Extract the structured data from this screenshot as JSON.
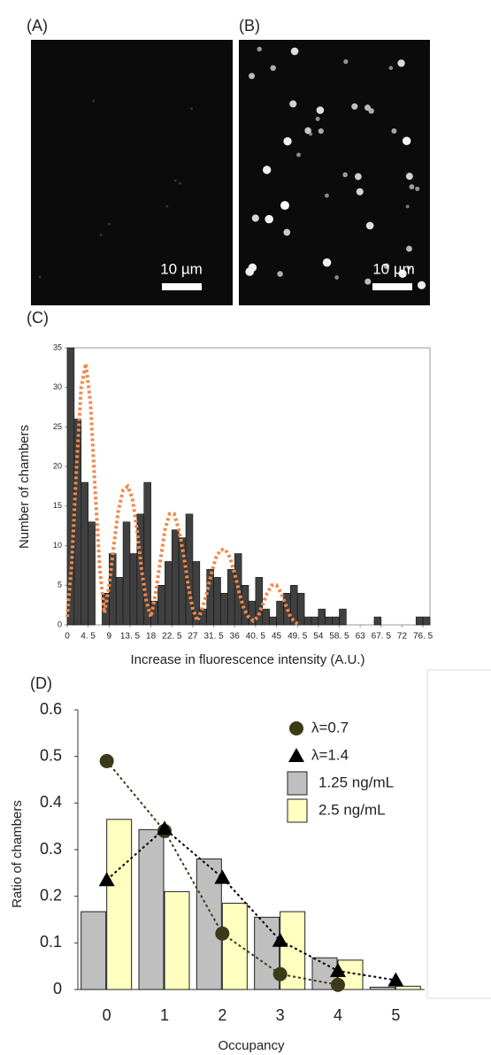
{
  "images": [
    {
      "label": "(A)",
      "scale_bar": "10 µm"
    },
    {
      "label": "(B)",
      "scale_bar": "10 µm"
    }
  ],
  "chart_data": [
    {
      "type": "histogram",
      "panel_label": "(C)",
      "y_label": "Number of chambers",
      "x_label": "Increase in fluorescence intensity (A.U.)",
      "bins": [
        0,
        1.5,
        3,
        4.5,
        6,
        7.5,
        9,
        10.5,
        12,
        13.5,
        15,
        16.5,
        18,
        19.5,
        21,
        22.5,
        24,
        25.5,
        27,
        28.5,
        30,
        31.5,
        33,
        34.5,
        36,
        37.5,
        39,
        40.5,
        42,
        43.5,
        45,
        46.5,
        48,
        49.5,
        51,
        52.5,
        54,
        55.5,
        57,
        58.5,
        60,
        61.5,
        63,
        64.5,
        66,
        67.5,
        69,
        70.5,
        72,
        73.5,
        75,
        76.5,
        78
      ],
      "values": [
        35,
        26,
        18,
        13,
        0,
        4,
        9,
        6,
        13,
        9,
        14,
        18,
        3,
        5,
        8,
        12,
        11,
        14,
        8,
        2,
        7,
        6,
        4,
        7,
        9,
        5,
        3,
        6,
        2,
        1,
        3,
        4,
        5,
        4,
        1,
        1,
        2,
        1,
        1,
        2,
        0,
        0,
        0,
        0,
        1,
        0,
        0,
        0,
        0,
        0,
        1,
        1
      ],
      "color": "#404040",
      "curve": {
        "color": "#f0884a",
        "x": [
          0,
          1,
          2,
          3,
          4,
          5,
          6,
          7,
          8,
          9,
          10,
          11,
          12,
          13,
          14,
          15,
          16,
          17,
          18,
          19,
          20,
          21,
          22,
          23,
          24,
          25,
          26,
          27,
          28,
          29,
          30,
          31,
          32,
          33,
          34,
          35,
          36,
          37,
          38,
          39,
          40,
          41,
          42,
          43,
          44,
          45,
          46,
          47,
          48,
          49,
          50
        ],
        "values": [
          1,
          8,
          20,
          30,
          33,
          28,
          17,
          7,
          1.5,
          5,
          10,
          14.5,
          17,
          17.5,
          16,
          12,
          7,
          3,
          1,
          4,
          8,
          12,
          14,
          14,
          12,
          9,
          5,
          2,
          0.5,
          2,
          4,
          6.5,
          8.5,
          9.5,
          9.5,
          8.5,
          6.5,
          4,
          2,
          1,
          0.5,
          1,
          2.5,
          4,
          5,
          5,
          4,
          2.5,
          1,
          0.3,
          0
        ]
      },
      "xlim": [
        0,
        78
      ],
      "ylim": [
        0,
        35
      ],
      "yticks": [
        0,
        5,
        10,
        15,
        20,
        25,
        30,
        35
      ],
      "xticks": [
        0,
        {
          "value": 4.5,
          "label": "4. 5"
        },
        9,
        {
          "value": 13.5,
          "label": "13. 5"
        },
        18,
        {
          "value": 22.5,
          "label": "22. 5"
        },
        27,
        {
          "value": 31.5,
          "label": "31. 5"
        },
        36,
        {
          "value": 40.5,
          "label": "40. 5"
        },
        45,
        {
          "value": 49.5,
          "label": "49. 5"
        },
        54,
        {
          "value": 58.5,
          "label": "58. 5"
        },
        63,
        {
          "value": 67.5,
          "label": "67. 5"
        },
        72,
        {
          "value": 76.5,
          "label": "76. 5"
        }
      ]
    },
    {
      "type": "bar",
      "panel_label": "(D)",
      "y_label": "Ratio of chambers",
      "x_label": "Occupancy",
      "categories": [
        "0",
        "1",
        "2",
        "3",
        "4",
        "5"
      ],
      "series": [
        {
          "name": "λ=0.7",
          "marker": "circle",
          "color": "#3b3b1a",
          "values": [
            0.49,
            0.34,
            0.12,
            0.033,
            0.01,
            null
          ]
        },
        {
          "name": "λ=1.4",
          "marker": "triangle",
          "color": "#000000",
          "values": [
            0.235,
            0.345,
            0.24,
            0.105,
            0.04,
            0.02
          ]
        },
        {
          "name": "1.25 ng/mL",
          "color": "#bfbfbf",
          "values": [
            0.167,
            0.343,
            0.28,
            0.155,
            0.068,
            0.005
          ]
        },
        {
          "name": "2.5 ng/mL",
          "color": "#ffffc0",
          "values": [
            0.365,
            0.21,
            0.185,
            0.167,
            0.063,
            0.007
          ]
        }
      ],
      "ylim": [
        0,
        0.6
      ],
      "yticks": [
        0,
        0.1,
        0.2,
        0.3,
        0.4,
        0.5,
        0.6
      ],
      "legend": "upper right"
    }
  ]
}
